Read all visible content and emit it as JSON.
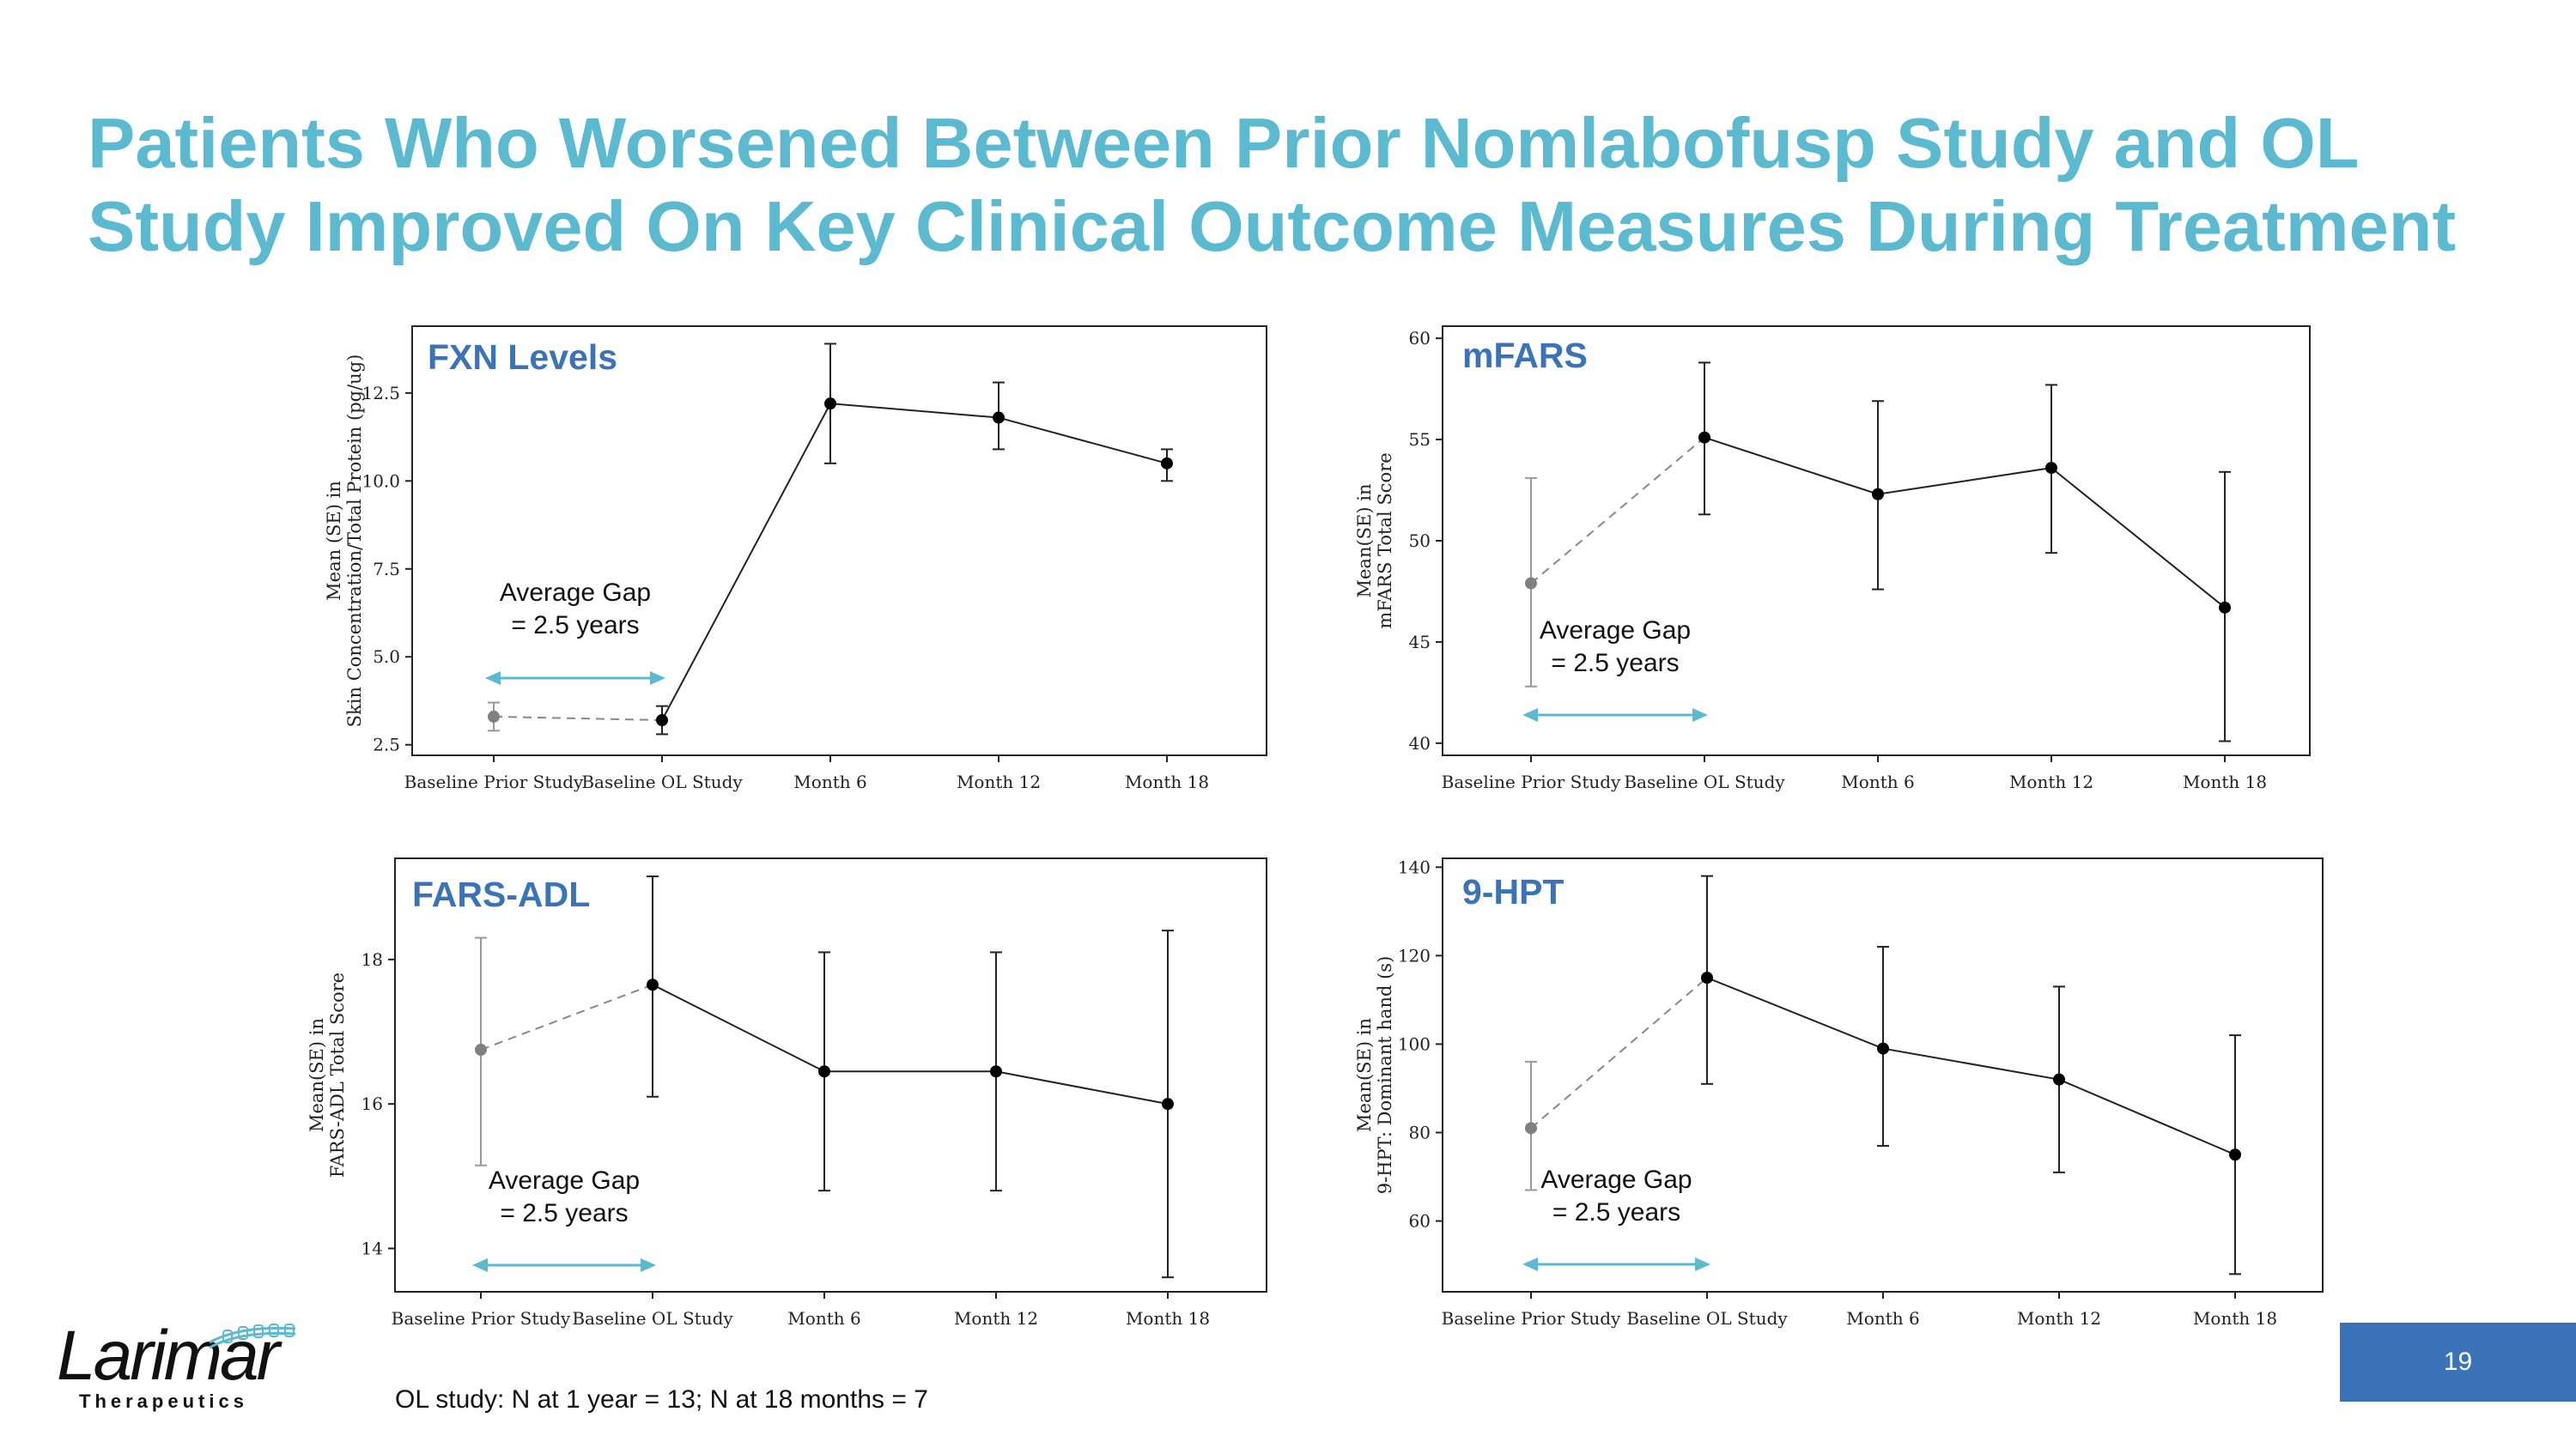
{
  "title": {
    "line1": "Patients Who Worsened Between Prior Nomlabofusp Study and OL",
    "line2": "Study Improved On Key Clinical Outcome Measures During Treatment"
  },
  "footnote": "OL study: N at 1 year = 13; N at 18 months = 7",
  "logo": {
    "name": "Larimar",
    "sub": "Therapeutics"
  },
  "page_number": "19",
  "colors": {
    "title": "#5bbad0",
    "panel_title": "#3a73b8",
    "gap_arrow": "#5bbad0",
    "prior_point": "#808080",
    "ol_point": "#000000",
    "page_badge": "#3a73b8"
  },
  "chart_data": [
    {
      "id": "fxn",
      "type": "line",
      "title": "FXN Levels",
      "ylabel": [
        "Mean (SE) in",
        "Skin Concentration/Total Protein (pg/ug)"
      ],
      "categories": [
        "Baseline Prior Study",
        "Baseline OL Study",
        "Month 6",
        "Month 12",
        "Month 18"
      ],
      "yticks": [
        "2.5",
        "5.0",
        "7.5",
        "10.0",
        "12.5"
      ],
      "ylim": [
        2.2,
        14.4
      ],
      "values": [
        3.3,
        3.2,
        12.2,
        11.8,
        10.5
      ],
      "err_low": [
        2.9,
        2.8,
        10.5,
        10.9,
        10.0
      ],
      "err_high": [
        3.7,
        3.6,
        13.9,
        12.8,
        10.9
      ],
      "gap_label": [
        "Average Gap",
        "= 2.5 years"
      ],
      "gap_text_pos": "top"
    },
    {
      "id": "mfars",
      "type": "line",
      "title": "mFARS",
      "ylabel": [
        "Mean(SE) in",
        "mFARS Total Score"
      ],
      "categories": [
        "Baseline Prior Study",
        "Baseline OL Study",
        "Month 6",
        "Month 12",
        "Month 18"
      ],
      "yticks": [
        "40",
        "45",
        "50",
        "55",
        "60"
      ],
      "ylim": [
        39.4,
        60.6
      ],
      "values": [
        47.9,
        55.1,
        52.3,
        53.6,
        46.7
      ],
      "err_low": [
        42.8,
        51.3,
        47.6,
        49.4,
        40.1
      ],
      "err_high": [
        53.1,
        58.8,
        56.9,
        57.7,
        53.4
      ],
      "gap_label": [
        "Average Gap",
        "= 2.5 years"
      ],
      "gap_text_pos": "top"
    },
    {
      "id": "farsadl",
      "type": "line",
      "title": "FARS-ADL",
      "ylabel": [
        "Mean(SE) in",
        "FARS-ADL Total Score"
      ],
      "categories": [
        "Baseline Prior Study",
        "Baseline OL Study",
        "Month 6",
        "Month 12",
        "Month 18"
      ],
      "yticks": [
        "14",
        "16",
        "18"
      ],
      "ylim": [
        13.4,
        19.4
      ],
      "values": [
        16.75,
        17.65,
        16.45,
        16.45,
        16.0
      ],
      "err_low": [
        15.15,
        16.1,
        14.8,
        14.8,
        13.6
      ],
      "err_high": [
        18.3,
        19.15,
        18.1,
        18.1,
        18.4
      ],
      "gap_label": [
        "Average Gap",
        "= 2.5 years"
      ],
      "gap_text_pos": "top"
    },
    {
      "id": "ninehpt",
      "type": "line",
      "title": "9-HPT",
      "ylabel": [
        "Mean(SE) in",
        "9-HPT: Dominant hand (s)"
      ],
      "categories": [
        "Baseline Prior Study",
        "Baseline OL Study",
        "Month 6",
        "Month 12",
        "Month 18"
      ],
      "yticks": [
        "60",
        "80",
        "100",
        "120",
        "140"
      ],
      "ylim": [
        44,
        142
      ],
      "values": [
        81,
        115,
        99,
        92,
        75
      ],
      "err_low": [
        67,
        91,
        77,
        71,
        48
      ],
      "err_high": [
        96,
        138,
        122,
        113,
        102
      ],
      "gap_label": [
        "Average Gap",
        "= 2.5 years"
      ],
      "gap_text_pos": "top"
    }
  ]
}
